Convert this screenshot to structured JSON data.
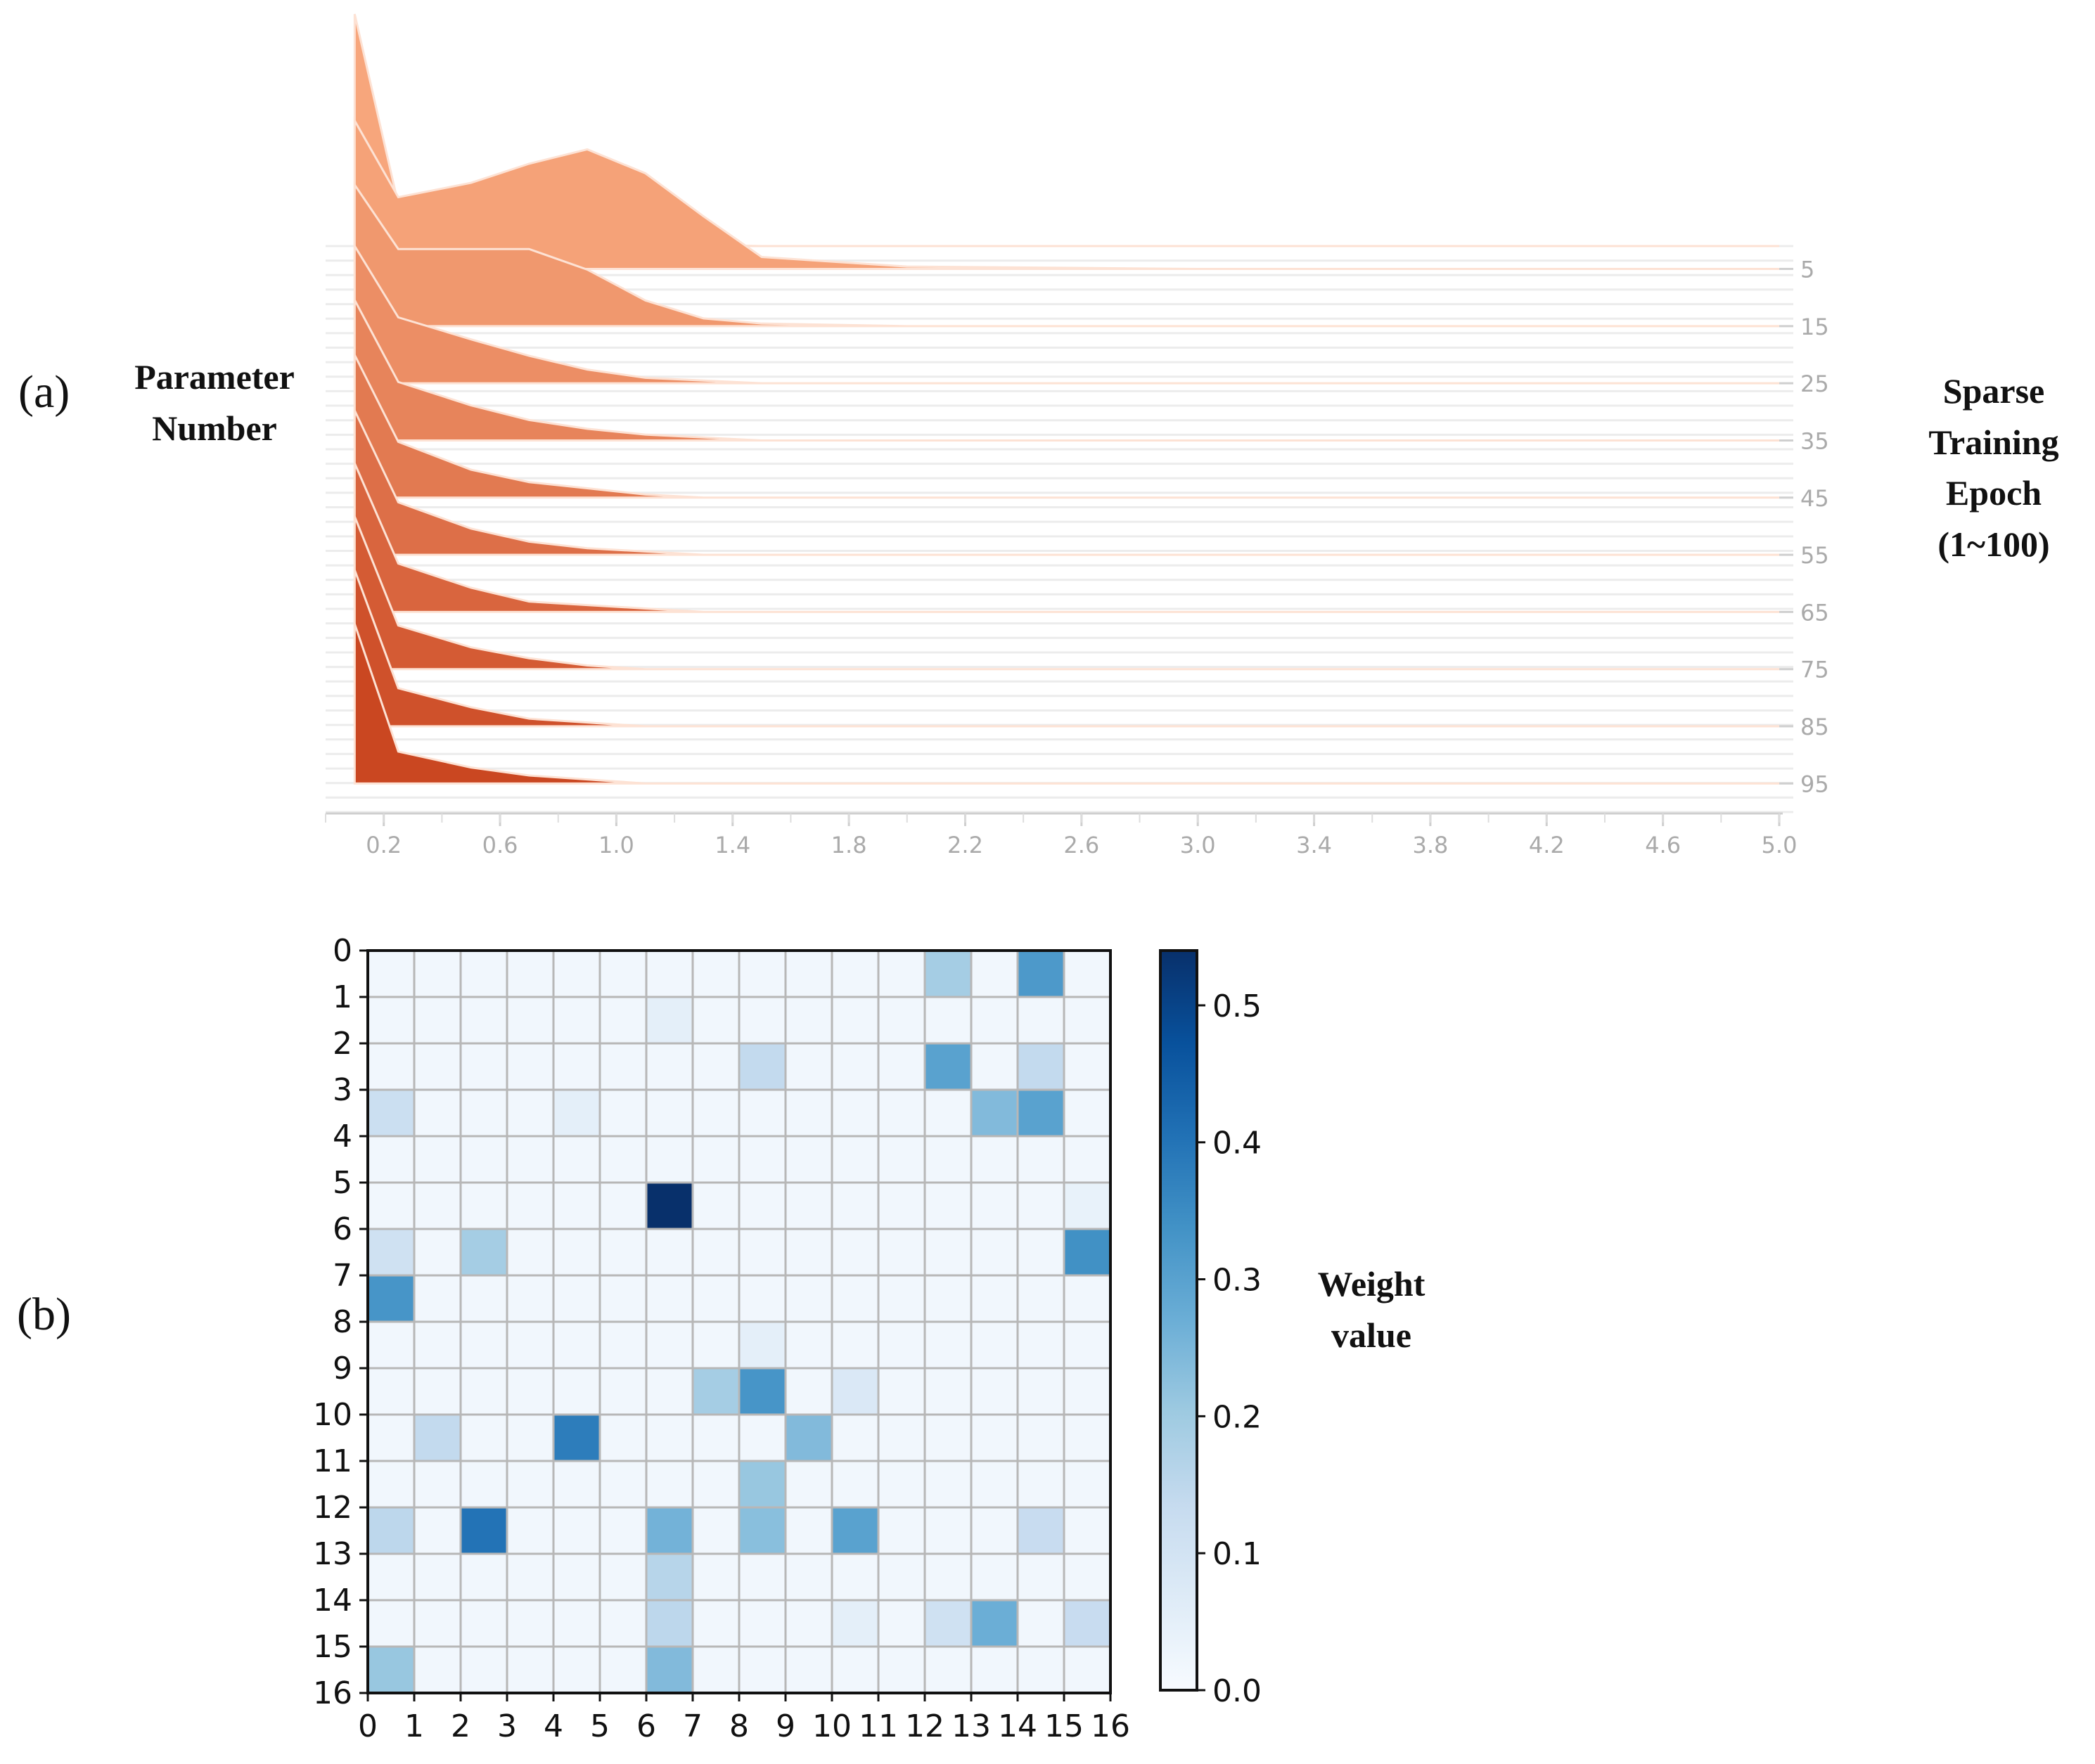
{
  "chart_data": [
    {
      "type": "area",
      "panel_label": "(a)",
      "title": "",
      "ylabel_lines": [
        "Parameter",
        "Number"
      ],
      "zlabel_lines": [
        "Sparse",
        "Training",
        "Epoch",
        "(1~100)"
      ],
      "xlabel": "",
      "x_ticks": [
        "0.2",
        "0.6",
        "1.0",
        "1.4",
        "1.8",
        "2.2",
        "2.6",
        "3.0",
        "3.4",
        "3.8",
        "4.2",
        "4.6",
        "5.0"
      ],
      "epoch_ticks": [
        "5",
        "15",
        "25",
        "35",
        "45",
        "55",
        "65",
        "75",
        "85",
        "95"
      ],
      "xlim": [
        0.0,
        5.0
      ],
      "epochs": [
        1,
        100
      ],
      "colors": {
        "front": "#c8421c",
        "back": "#f7a67c"
      },
      "series": [
        {
          "name": "epoch 1",
          "x": [
            0.1,
            0.25,
            0.5,
            0.7,
            0.9,
            1.1,
            1.3,
            1.5,
            2.0,
            3.0,
            5.0
          ],
          "values": [
            1.0,
            0.18,
            0.06,
            0.03,
            0.02,
            0.01,
            0.005,
            0.0,
            0.0,
            0.0,
            0.0
          ]
        },
        {
          "name": "epoch 5",
          "x": [
            0.1,
            0.25,
            0.5,
            0.7,
            0.9,
            1.1,
            1.3,
            1.5,
            2.0,
            3.0,
            5.0
          ],
          "values": [
            0.62,
            0.3,
            0.36,
            0.44,
            0.5,
            0.4,
            0.22,
            0.05,
            0.01,
            0.0,
            0.0
          ]
        },
        {
          "name": "epoch 15",
          "x": [
            0.1,
            0.25,
            0.5,
            0.7,
            0.9,
            1.1,
            1.3,
            1.5,
            2.0,
            3.0,
            5.0
          ],
          "values": [
            0.55,
            0.3,
            0.3,
            0.3,
            0.22,
            0.1,
            0.03,
            0.01,
            0.0,
            0.0,
            0.0
          ]
        },
        {
          "name": "epoch 25",
          "x": [
            0.1,
            0.25,
            0.5,
            0.7,
            0.9,
            1.1,
            1.3,
            1.5,
            2.0,
            3.0,
            5.0
          ],
          "values": [
            0.5,
            0.24,
            0.16,
            0.1,
            0.05,
            0.02,
            0.01,
            0.0,
            0.0,
            0.0,
            0.0
          ]
        },
        {
          "name": "epoch 35",
          "x": [
            0.1,
            0.25,
            0.5,
            0.7,
            0.9,
            1.1,
            1.3,
            1.5,
            2.0,
            3.0,
            5.0
          ],
          "values": [
            0.48,
            0.2,
            0.12,
            0.07,
            0.04,
            0.02,
            0.01,
            0.0,
            0.0,
            0.0,
            0.0
          ]
        },
        {
          "name": "epoch 45",
          "x": [
            0.1,
            0.25,
            0.5,
            0.7,
            0.9,
            1.1,
            1.3,
            1.5,
            2.0,
            3.0,
            5.0
          ],
          "values": [
            0.46,
            0.18,
            0.09,
            0.05,
            0.03,
            0.01,
            0.0,
            0.0,
            0.0,
            0.0,
            0.0
          ]
        },
        {
          "name": "epoch 55",
          "x": [
            0.1,
            0.25,
            0.5,
            0.7,
            0.9,
            1.1,
            1.3,
            1.5,
            2.0,
            3.0,
            5.0
          ],
          "values": [
            0.44,
            0.16,
            0.08,
            0.04,
            0.02,
            0.01,
            0.0,
            0.0,
            0.0,
            0.0,
            0.0
          ]
        },
        {
          "name": "epoch 65",
          "x": [
            0.1,
            0.25,
            0.5,
            0.7,
            0.9,
            1.1,
            1.3,
            1.5,
            2.0,
            3.0,
            5.0
          ],
          "values": [
            0.43,
            0.14,
            0.07,
            0.03,
            0.02,
            0.01,
            0.0,
            0.0,
            0.0,
            0.0,
            0.0
          ]
        },
        {
          "name": "epoch 75",
          "x": [
            0.1,
            0.25,
            0.5,
            0.7,
            0.9,
            1.1,
            1.3,
            1.5,
            2.0,
            3.0,
            5.0
          ],
          "values": [
            0.42,
            0.12,
            0.06,
            0.03,
            0.01,
            0.0,
            0.0,
            0.0,
            0.0,
            0.0,
            0.0
          ]
        },
        {
          "name": "epoch 85",
          "x": [
            0.1,
            0.25,
            0.5,
            0.7,
            0.9,
            1.1,
            1.3,
            1.5,
            2.0,
            3.0,
            5.0
          ],
          "values": [
            0.41,
            0.1,
            0.05,
            0.02,
            0.01,
            0.0,
            0.0,
            0.0,
            0.0,
            0.0,
            0.0
          ]
        },
        {
          "name": "epoch 95",
          "x": [
            0.1,
            0.25,
            0.5,
            0.7,
            0.9,
            1.1,
            1.3,
            1.5,
            2.0,
            3.0,
            5.0
          ],
          "values": [
            0.4,
            0.08,
            0.04,
            0.02,
            0.01,
            0.0,
            0.0,
            0.0,
            0.0,
            0.0,
            0.0
          ]
        }
      ]
    },
    {
      "type": "heatmap",
      "panel_label": "(b)",
      "title": "",
      "colorbar_label_lines": [
        "Weight",
        "value"
      ],
      "rows": 16,
      "cols": 16,
      "x_ticks": [
        "0",
        "1",
        "2",
        "3",
        "4",
        "5",
        "6",
        "7",
        "8",
        "9",
        "10",
        "11",
        "12",
        "13",
        "14",
        "15",
        "16"
      ],
      "y_ticks": [
        "0",
        "1",
        "2",
        "3",
        "4",
        "5",
        "6",
        "7",
        "8",
        "9",
        "10",
        "11",
        "12",
        "13",
        "14",
        "15",
        "16"
      ],
      "colorbar_ticks": [
        "0.0",
        "0.1",
        "0.2",
        "0.3",
        "0.4",
        "0.5"
      ],
      "vmin": 0.0,
      "vmax": 0.54,
      "colormap": [
        "#f7fbff",
        "#deebf7",
        "#c6dbef",
        "#9ecae1",
        "#6baed6",
        "#4292c6",
        "#2171b5",
        "#08519c",
        "#08306b"
      ],
      "background_value": 0.015,
      "cells": [
        {
          "row": 0,
          "col": 12,
          "value": 0.19
        },
        {
          "row": 0,
          "col": 14,
          "value": 0.32
        },
        {
          "row": 1,
          "col": 6,
          "value": 0.05
        },
        {
          "row": 2,
          "col": 8,
          "value": 0.14
        },
        {
          "row": 2,
          "col": 12,
          "value": 0.3
        },
        {
          "row": 2,
          "col": 14,
          "value": 0.14
        },
        {
          "row": 3,
          "col": 0,
          "value": 0.12
        },
        {
          "row": 3,
          "col": 4,
          "value": 0.05
        },
        {
          "row": 3,
          "col": 13,
          "value": 0.24
        },
        {
          "row": 3,
          "col": 14,
          "value": 0.3
        },
        {
          "row": 5,
          "col": 6,
          "value": 0.54
        },
        {
          "row": 5,
          "col": 15,
          "value": 0.04
        },
        {
          "row": 6,
          "col": 0,
          "value": 0.11
        },
        {
          "row": 6,
          "col": 2,
          "value": 0.19
        },
        {
          "row": 6,
          "col": 15,
          "value": 0.34
        },
        {
          "row": 7,
          "col": 0,
          "value": 0.33
        },
        {
          "row": 8,
          "col": 8,
          "value": 0.05
        },
        {
          "row": 9,
          "col": 7,
          "value": 0.19
        },
        {
          "row": 9,
          "col": 8,
          "value": 0.33
        },
        {
          "row": 9,
          "col": 10,
          "value": 0.08
        },
        {
          "row": 10,
          "col": 1,
          "value": 0.14
        },
        {
          "row": 10,
          "col": 4,
          "value": 0.38
        },
        {
          "row": 10,
          "col": 9,
          "value": 0.24
        },
        {
          "row": 11,
          "col": 8,
          "value": 0.21
        },
        {
          "row": 12,
          "col": 0,
          "value": 0.15
        },
        {
          "row": 12,
          "col": 2,
          "value": 0.4
        },
        {
          "row": 12,
          "col": 6,
          "value": 0.26
        },
        {
          "row": 12,
          "col": 8,
          "value": 0.23
        },
        {
          "row": 12,
          "col": 10,
          "value": 0.3
        },
        {
          "row": 12,
          "col": 14,
          "value": 0.13
        },
        {
          "row": 13,
          "col": 6,
          "value": 0.16
        },
        {
          "row": 14,
          "col": 6,
          "value": 0.15
        },
        {
          "row": 14,
          "col": 10,
          "value": 0.05
        },
        {
          "row": 14,
          "col": 12,
          "value": 0.11
        },
        {
          "row": 14,
          "col": 13,
          "value": 0.27
        },
        {
          "row": 14,
          "col": 15,
          "value": 0.13
        },
        {
          "row": 15,
          "col": 0,
          "value": 0.21
        },
        {
          "row": 15,
          "col": 6,
          "value": 0.24
        }
      ]
    }
  ]
}
